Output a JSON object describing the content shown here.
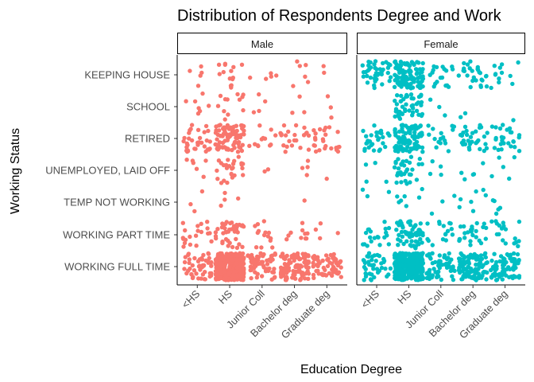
{
  "chart_data": {
    "type": "scatter",
    "title": "Distribution of Respondents Degree and Work",
    "xlabel": "Education Degree",
    "ylabel": "Working Status",
    "x_categories": [
      "<HS",
      "HS",
      "Junior Coll",
      "Bachelor deg",
      "Graduate deg"
    ],
    "y_categories": [
      "KEEPING HOUSE",
      "SCHOOL",
      "RETIRED",
      "UNEMPLOYED, LAID OFF",
      "TEMP NOT WORKING",
      "WORKING PART TIME",
      "WORKING FULL TIME"
    ],
    "jitter": true,
    "grid": false,
    "legend": "none",
    "facets": [
      {
        "name": "Male",
        "color": "#F8766D",
        "counts": [
          [
            5,
            14,
            5,
            6,
            2
          ],
          [
            7,
            12,
            4,
            3,
            3
          ],
          [
            33,
            80,
            12,
            22,
            24
          ],
          [
            6,
            26,
            2,
            4,
            1
          ],
          [
            3,
            4,
            0,
            1,
            0
          ],
          [
            20,
            40,
            14,
            10,
            4
          ],
          [
            50,
            300,
            60,
            110,
            60
          ]
        ]
      },
      {
        "name": "Female",
        "color": "#00BFC4",
        "counts": [
          [
            40,
            110,
            18,
            26,
            12
          ],
          [
            0,
            45,
            3,
            2,
            1
          ],
          [
            28,
            100,
            16,
            30,
            26
          ],
          [
            4,
            32,
            4,
            5,
            5
          ],
          [
            3,
            7,
            3,
            7,
            5
          ],
          [
            20,
            60,
            16,
            25,
            18
          ],
          [
            40,
            350,
            55,
            100,
            70
          ]
        ]
      }
    ]
  }
}
